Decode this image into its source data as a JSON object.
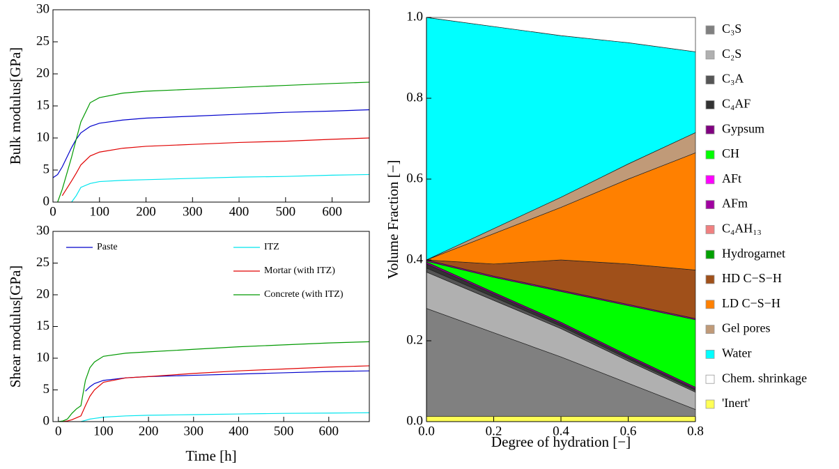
{
  "chart_data": [
    {
      "type": "line",
      "ylabel": "Bulk modulus[GPa]",
      "x": [
        0,
        10,
        20,
        40,
        50,
        60,
        80,
        100,
        150,
        200,
        300,
        400,
        500,
        600,
        680
      ],
      "series": [
        {
          "color": "#0000cc",
          "values": [
            3.8,
            4.3,
            5.5,
            8.5,
            9.8,
            10.8,
            11.8,
            12.3,
            12.8,
            13.1,
            13.4,
            13.7,
            14.0,
            14.2,
            14.4
          ]
        },
        {
          "color": "#00e5ee",
          "values": [
            null,
            null,
            null,
            0,
            1,
            2.3,
            2.9,
            3.2,
            3.4,
            3.5,
            3.7,
            3.9,
            4.0,
            4.2,
            4.3
          ]
        },
        {
          "color": "#e00000",
          "values": [
            null,
            null,
            1,
            3.3,
            4.5,
            5.8,
            7.2,
            7.8,
            8.4,
            8.7,
            9.0,
            9.3,
            9.5,
            9.8,
            10.0
          ]
        },
        {
          "color": "#009900",
          "values": [
            null,
            0,
            2,
            7,
            9.8,
            12.5,
            15.5,
            16.3,
            17.0,
            17.3,
            17.6,
            17.9,
            18.2,
            18.5,
            18.7
          ]
        }
      ],
      "xlim": [
        0,
        680
      ],
      "xticks": [
        0,
        100,
        200,
        300,
        400,
        500,
        600
      ],
      "ylim": [
        0,
        30
      ],
      "yticks": [
        0,
        5,
        10,
        15,
        20,
        25,
        30
      ],
      "grid": false
    },
    {
      "type": "line",
      "ylabel": "Shear modulus[GPa]",
      "xlabel": "Time [h]",
      "x": [
        0,
        10,
        20,
        30,
        40,
        50,
        60,
        70,
        80,
        100,
        150,
        200,
        300,
        400,
        500,
        600,
        690
      ],
      "series": [
        {
          "name": "Paste",
          "color": "#0000cc",
          "values": [
            null,
            null,
            null,
            null,
            null,
            null,
            4.8,
            5.5,
            6.0,
            6.5,
            6.9,
            7.1,
            7.3,
            7.5,
            7.7,
            7.9,
            8.0
          ]
        },
        {
          "name": "ITZ",
          "color": "#00e5ee",
          "values": [
            null,
            null,
            null,
            null,
            null,
            0,
            0.2,
            0.4,
            0.5,
            0.7,
            0.9,
            1.0,
            1.1,
            1.2,
            1.3,
            1.35,
            1.4
          ]
        },
        {
          "name": "Mortar (with ITZ)",
          "color": "#e00000",
          "values": [
            null,
            0,
            0.1,
            0.3,
            0.6,
            0.9,
            2.5,
            4,
            5,
            6.2,
            6.9,
            7.1,
            7.6,
            8.0,
            8.3,
            8.6,
            8.8
          ]
        },
        {
          "name": "Concrete (with ITZ)",
          "color": "#009900",
          "values": [
            0,
            0.1,
            0.4,
            1.3,
            2,
            2.5,
            6.5,
            8.5,
            9.4,
            10.3,
            10.8,
            11.0,
            11.4,
            11.8,
            12.1,
            12.4,
            12.6
          ]
        }
      ],
      "xlim": [
        -12,
        690
      ],
      "xticks": [
        0,
        100,
        200,
        300,
        400,
        500,
        600
      ],
      "ylim": [
        0,
        30
      ],
      "yticks": [
        0,
        5,
        10,
        15,
        20,
        25,
        30
      ],
      "grid": false
    },
    {
      "type": "stacked-area",
      "ylabel": "Volume Fraction [−]",
      "xlabel": "Degree of hydration [−]",
      "x": [
        0,
        0.2,
        0.4,
        0.6,
        0.8
      ],
      "series": [
        {
          "name": "'Inert'",
          "color": "#ffff55",
          "values": [
            0.013,
            0.013,
            0.013,
            0.013,
            0.013
          ]
        },
        {
          "name": "C₃S",
          "color": "#808080",
          "values": [
            0.267,
            0.207,
            0.147,
            0.082,
            0.017
          ]
        },
        {
          "name": "C₂S",
          "color": "#b0b0b0",
          "values": [
            0.09,
            0.08,
            0.07,
            0.055,
            0.043
          ]
        },
        {
          "name": "C₃A",
          "color": "#555555",
          "values": [
            0.01,
            0.008,
            0.006,
            0.005,
            0.004
          ]
        },
        {
          "name": "C₄AF",
          "color": "#333333",
          "values": [
            0.01,
            0.008,
            0.006,
            0.005,
            0.004
          ]
        },
        {
          "name": "Gypsum",
          "color": "#800080",
          "values": [
            0.005,
            0.004,
            0.004,
            0.004,
            0.004
          ]
        },
        {
          "name": "CH",
          "color": "#00ff00",
          "values": [
            0.002,
            0.037,
            0.076,
            0.123,
            0.167
          ]
        },
        {
          "name": "AFt",
          "color": "#ff00ff",
          "values": [
            0,
            0,
            0,
            0,
            0
          ]
        },
        {
          "name": "AFm",
          "color": "#a000a0",
          "values": [
            0.003,
            0.003,
            0.003,
            0.003,
            0.003
          ]
        },
        {
          "name": "C₄AH₁₃",
          "color": "#f08080",
          "values": [
            0,
            0,
            0,
            0,
            0
          ]
        },
        {
          "name": "Hydrogarnet",
          "color": "#00a000",
          "values": [
            0,
            0,
            0,
            0,
            0
          ]
        },
        {
          "name": "HD C−S−H",
          "color": "#a0501a",
          "values": [
            0,
            0.03,
            0.075,
            0.1,
            0.12
          ]
        },
        {
          "name": "LD C−S−H",
          "color": "#ff8000",
          "values": [
            0,
            0.075,
            0.13,
            0.21,
            0.29
          ]
        },
        {
          "name": "Gel pores",
          "color": "#c09a78",
          "values": [
            0,
            0.0125,
            0.025,
            0.0375,
            0.05
          ]
        },
        {
          "name": "Water",
          "color": "#00ffff",
          "values": [
            0.6,
            0.5,
            0.4,
            0.3,
            0.2
          ]
        },
        {
          "name": "Chem. shrinkage",
          "color": "#ffffff",
          "values": [
            0,
            0.0225,
            0.045,
            0.0625,
            0.085
          ]
        }
      ],
      "xlim": [
        0,
        0.8
      ],
      "xticks": [
        {
          "value": 0,
          "label": "0.0"
        },
        0.2,
        0.4,
        0.6,
        0.8
      ],
      "ylim": [
        0,
        1
      ],
      "yticks": [
        {
          "value": 0,
          "label": "0.0"
        },
        0.2,
        0.4,
        0.6,
        0.8,
        {
          "value": 1,
          "label": "1.0"
        }
      ],
      "grid": false
    }
  ]
}
